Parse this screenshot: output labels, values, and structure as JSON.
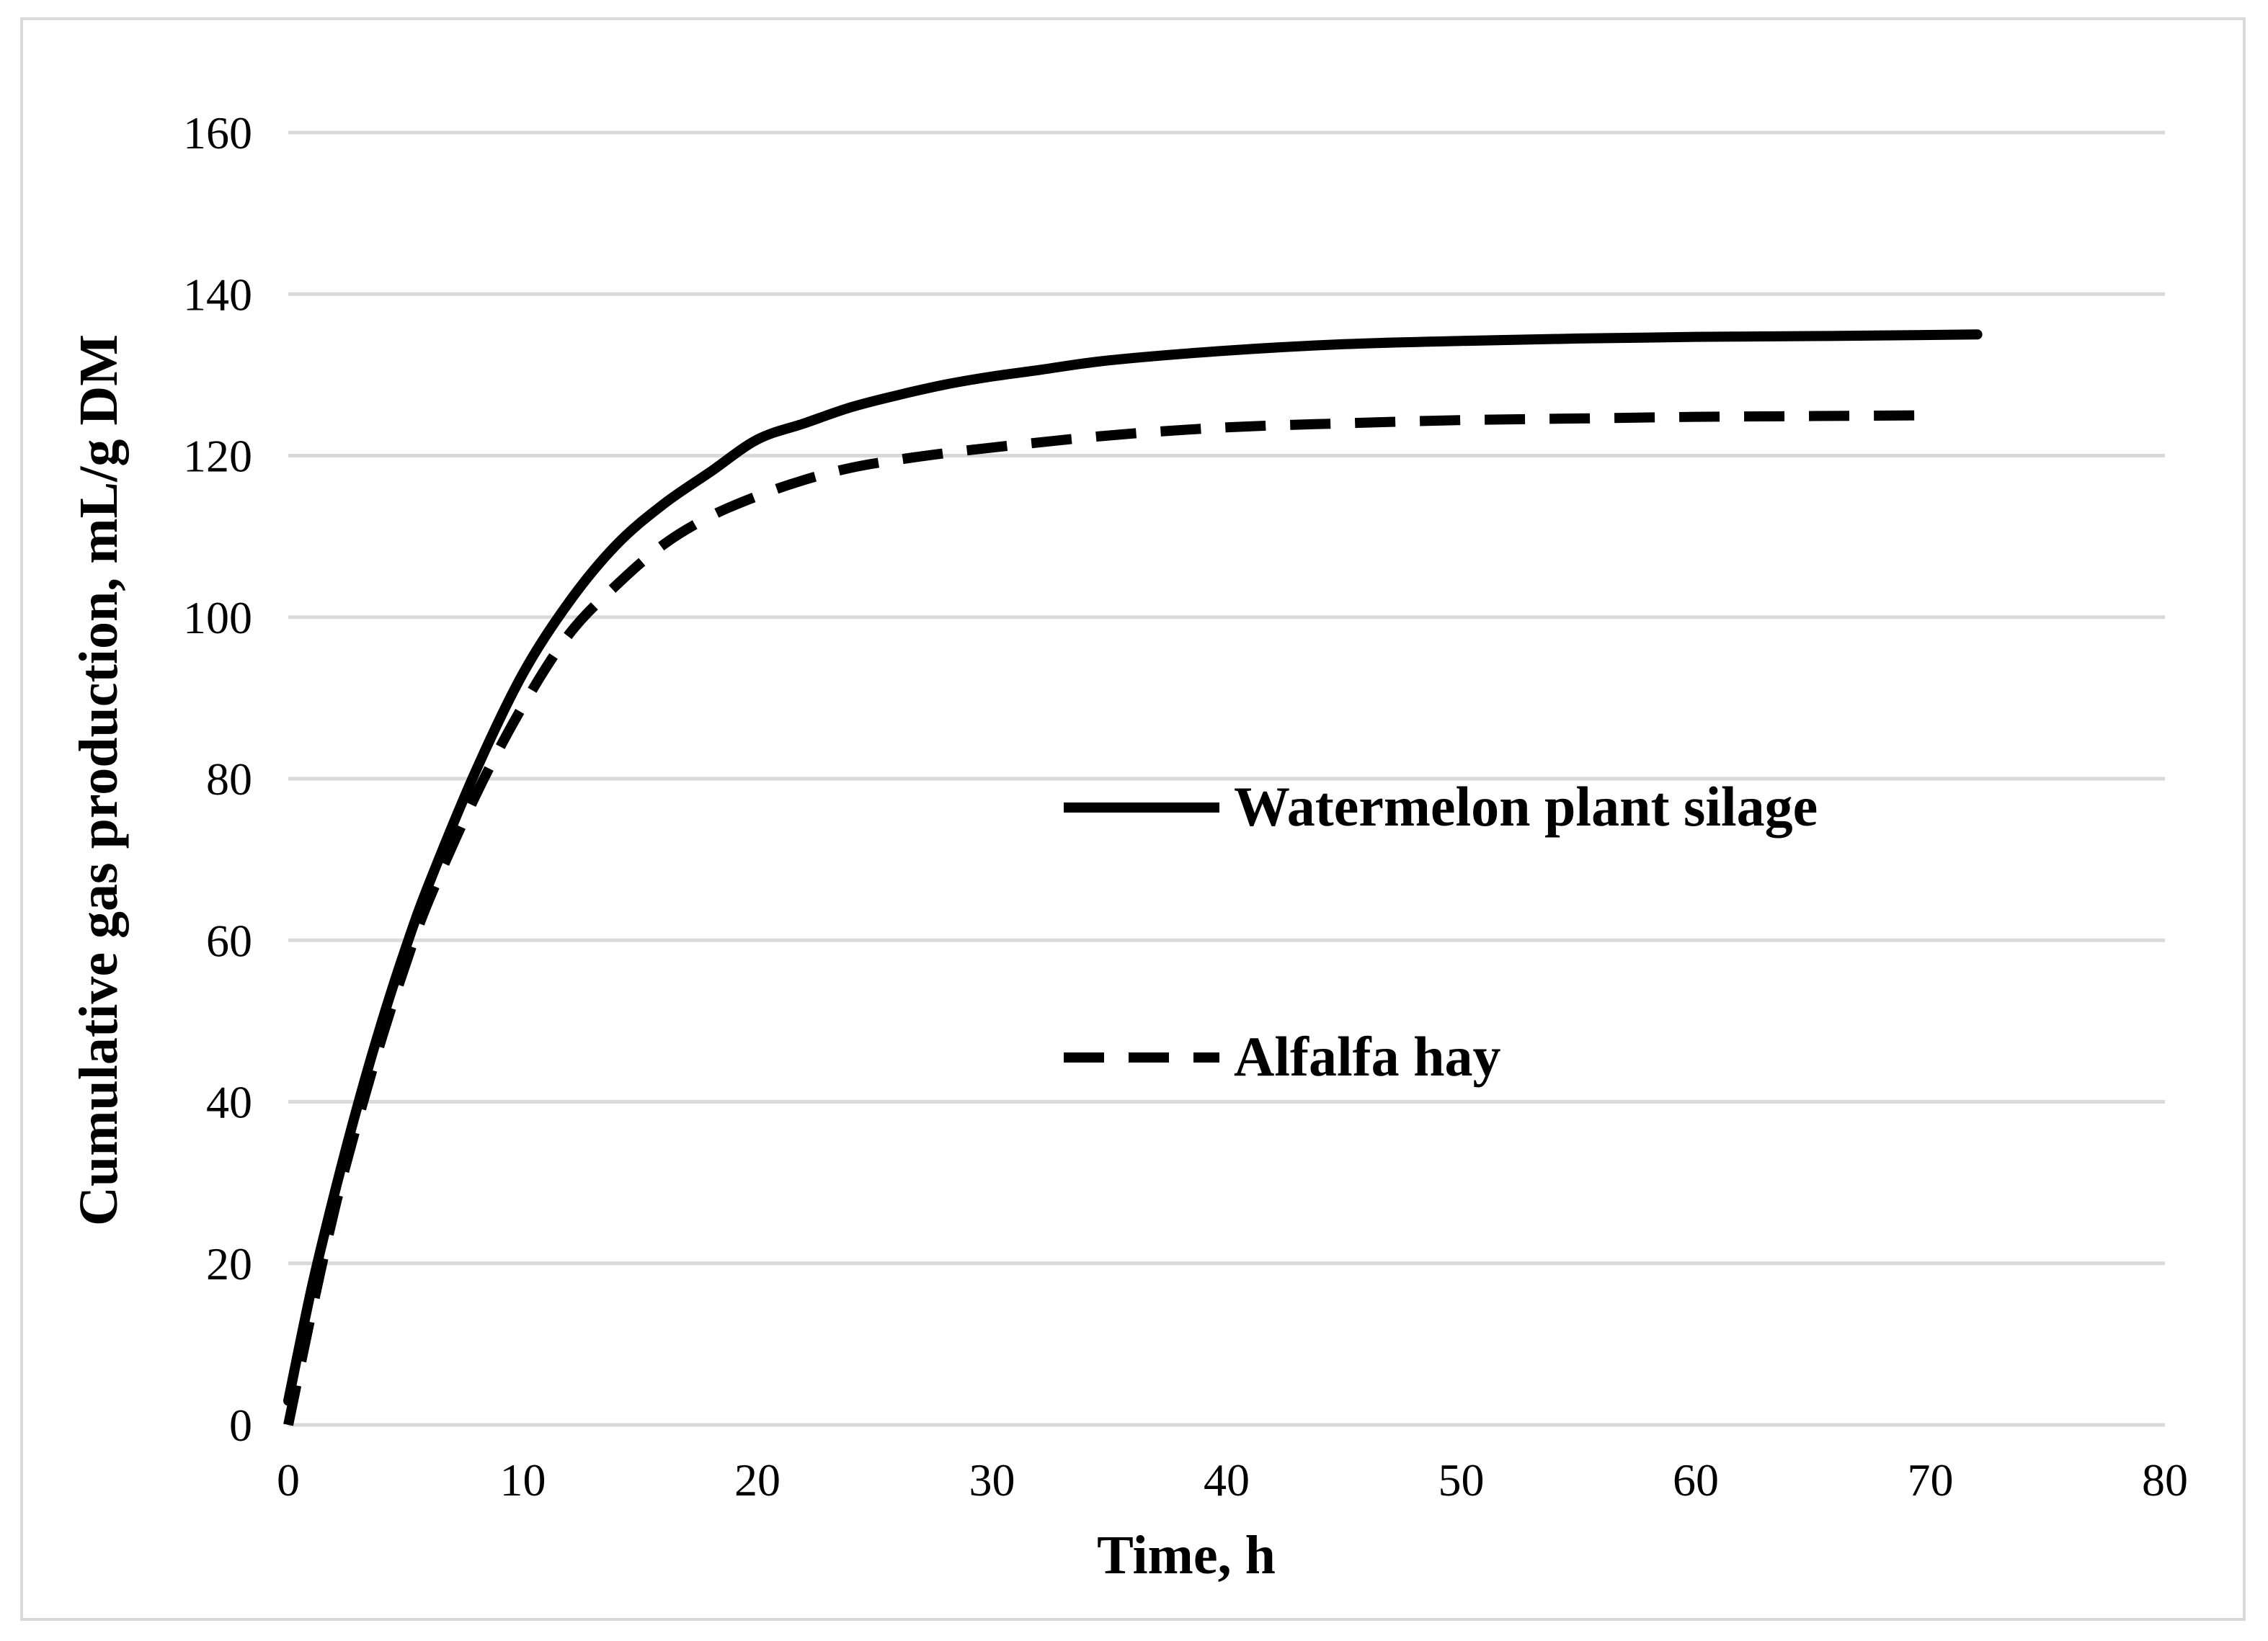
{
  "chart_data": {
    "type": "line",
    "title": "",
    "xlabel": "Time, h",
    "ylabel": "Cumulative gas production, mL/g DM",
    "xlim": [
      0,
      80
    ],
    "ylim": [
      0,
      160
    ],
    "x_ticks": [
      0,
      10,
      20,
      30,
      40,
      50,
      60,
      70,
      80
    ],
    "y_ticks": [
      0,
      20,
      40,
      60,
      80,
      100,
      120,
      140,
      160
    ],
    "grid": true,
    "legend_position": "center-right",
    "series": [
      {
        "name": "Watermelon plant silage",
        "style": "solid",
        "color": "#000000",
        "x": [
          0,
          1,
          2,
          3,
          4,
          5,
          6,
          8,
          10,
          12,
          14,
          16,
          18,
          20,
          22,
          24,
          26,
          28,
          30,
          32,
          35,
          40,
          45,
          50,
          55,
          60,
          65,
          72
        ],
        "y": [
          3,
          17,
          29,
          40,
          50,
          59,
          67,
          81,
          93,
          102,
          109,
          114,
          118,
          122,
          124,
          126,
          127.5,
          128.8,
          129.8,
          130.6,
          131.8,
          133,
          133.8,
          134.2,
          134.5,
          134.7,
          134.8,
          135
        ]
      },
      {
        "name": "Alfalfa hay",
        "style": "dashed",
        "color": "#000000",
        "x": [
          0,
          1,
          2,
          3,
          4,
          5,
          6,
          8,
          10,
          12,
          14,
          16,
          18,
          20,
          22,
          24,
          26,
          28,
          30,
          35,
          40,
          45,
          50,
          55,
          60,
          65,
          70
        ],
        "y": [
          0,
          14,
          27,
          38,
          48,
          57,
          65,
          78,
          89,
          98,
          104,
          109,
          112.5,
          115,
          117,
          118.5,
          119.5,
          120.3,
          121,
          122.5,
          123.5,
          124,
          124.4,
          124.6,
          124.8,
          124.9,
          125
        ]
      }
    ]
  }
}
